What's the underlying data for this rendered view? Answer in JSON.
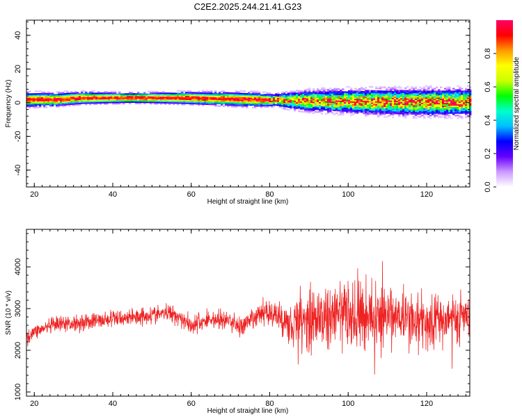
{
  "chart_data": [
    {
      "type": "heatmap",
      "title": "C2E2.2025.244.21.41.G23",
      "xlabel": "Height of straight line (km)",
      "ylabel": "Frequency (Hz)",
      "xlim": [
        18,
        131
      ],
      "ylim": [
        -50,
        49
      ],
      "xticks": [
        "20",
        "40",
        "60",
        "80",
        "100",
        "120"
      ],
      "yticks": [
        "-40",
        "-20",
        "0",
        "20",
        "40"
      ],
      "grid": false,
      "colorbar": {
        "label": "Normalized spectral amplitude",
        "range": [
          0,
          1
        ],
        "ticks": [
          "0.0",
          "0.2",
          "0.4",
          "0.6",
          "0.8"
        ],
        "colors": [
          "#ffffff",
          "#cc99ff",
          "#6600ff",
          "#0000ff",
          "#00bfff",
          "#00ffcc",
          "#00ff00",
          "#ccff00",
          "#ffff00",
          "#ff9900",
          "#ff0000",
          "#ff0066"
        ]
      },
      "band_center_hz": [
        [
          18,
          1.5
        ],
        [
          25,
          1.5
        ],
        [
          32,
          2.5
        ],
        [
          45,
          2.5
        ],
        [
          58,
          2.5
        ],
        [
          68,
          2.0
        ],
        [
          76,
          1.5
        ],
        [
          85,
          1.0
        ],
        [
          100,
          0.5
        ],
        [
          115,
          0.0
        ],
        [
          131,
          0.0
        ]
      ],
      "band_halfwidth_hz": [
        [
          18,
          3.5
        ],
        [
          30,
          3.0
        ],
        [
          45,
          2.5
        ],
        [
          60,
          3.0
        ],
        [
          75,
          3.5
        ],
        [
          80,
          3.0
        ],
        [
          90,
          5.0
        ],
        [
          105,
          6.0
        ],
        [
          120,
          6.5
        ],
        [
          131,
          6.5
        ]
      ]
    },
    {
      "type": "line",
      "title": "",
      "xlabel": "Height of straight line (km)",
      "ylabel": "SNR (10 * v/v)",
      "xlim": [
        18,
        131
      ],
      "ylim": [
        900,
        4900
      ],
      "xticks": [
        "20",
        "40",
        "60",
        "80",
        "100",
        "120"
      ],
      "yticks": [
        "1000",
        "2000",
        "3000",
        "4000"
      ],
      "grid": false,
      "series": [
        {
          "color": "#ee2222",
          "trend": [
            [
              18,
              2300
            ],
            [
              20,
              2450
            ],
            [
              25,
              2600
            ],
            [
              30,
              2650
            ],
            [
              35,
              2700
            ],
            [
              40,
              2750
            ],
            [
              45,
              2800
            ],
            [
              50,
              2850
            ],
            [
              55,
              2900
            ],
            [
              58,
              2750
            ],
            [
              60,
              2600
            ],
            [
              65,
              2750
            ],
            [
              70,
              2700
            ],
            [
              73,
              2550
            ],
            [
              76,
              2750
            ],
            [
              79,
              2950
            ],
            [
              82,
              2800
            ],
            [
              85,
              2650
            ],
            [
              90,
              2750
            ],
            [
              95,
              2800
            ],
            [
              100,
              2850
            ],
            [
              105,
              2850
            ],
            [
              110,
              2800
            ],
            [
              115,
              2750
            ],
            [
              120,
              2700
            ],
            [
              125,
              2750
            ],
            [
              131,
              2800
            ]
          ],
          "spread": [
            [
              18,
              250
            ],
            [
              30,
              300
            ],
            [
              45,
              300
            ],
            [
              60,
              350
            ],
            [
              75,
              400
            ],
            [
              80,
              450
            ],
            [
              85,
              700
            ],
            [
              90,
              900
            ],
            [
              95,
              1000
            ],
            [
              100,
              1200
            ],
            [
              105,
              1100
            ],
            [
              110,
              1000
            ],
            [
              115,
              950
            ],
            [
              120,
              900
            ],
            [
              125,
              850
            ],
            [
              131,
              800
            ]
          ]
        }
      ]
    }
  ]
}
